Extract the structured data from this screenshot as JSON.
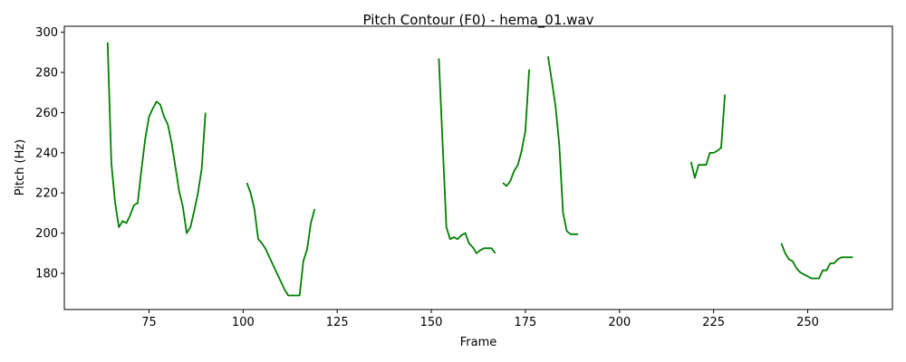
{
  "chart_data": {
    "type": "line",
    "title": "Pitch Contour (F0) - hema_01.wav",
    "xlabel": "Frame",
    "ylabel": "Pitch (Hz)",
    "xlim": [
      52.5,
      272.5
    ],
    "ylim": [
      162,
      303
    ],
    "xticks": [
      75,
      100,
      125,
      150,
      175,
      200,
      225,
      250
    ],
    "yticks": [
      180,
      200,
      220,
      240,
      260,
      280,
      300
    ],
    "grid": false,
    "legend": "none",
    "series": [
      {
        "color": "#008000",
        "segments": [
          [
            [
              64,
              295
            ],
            [
              65,
              235
            ],
            [
              66,
              215
            ],
            [
              67,
              203
            ],
            [
              68,
              206
            ],
            [
              69,
              205
            ],
            [
              70,
              209
            ],
            [
              71,
              214
            ],
            [
              72,
              215
            ],
            [
              73,
              232
            ],
            [
              74,
              247
            ],
            [
              75,
              258
            ],
            [
              76,
              262
            ],
            [
              77,
              265.5
            ],
            [
              78,
              264
            ],
            [
              79,
              258
            ],
            [
              80,
              254
            ],
            [
              81,
              245
            ],
            [
              82,
              233
            ],
            [
              83,
              221
            ],
            [
              84,
              213
            ],
            [
              85,
              200
            ],
            [
              86,
              203
            ],
            [
              87,
              211
            ],
            [
              88,
              220
            ],
            [
              89,
              232
            ],
            [
              90,
              260
            ]
          ],
          [
            [
              101,
              225
            ],
            [
              102,
              220
            ],
            [
              103,
              212
            ],
            [
              104,
              197
            ],
            [
              105,
              195
            ],
            [
              106,
              192
            ],
            [
              107,
              188
            ],
            [
              108,
              184
            ],
            [
              109,
              180
            ],
            [
              110,
              176
            ],
            [
              111,
              172
            ],
            [
              112,
              169
            ],
            [
              113,
              169
            ],
            [
              114,
              169
            ],
            [
              115,
              169
            ],
            [
              116,
              186
            ],
            [
              117,
              192
            ],
            [
              118,
              205
            ],
            [
              119,
              212
            ]
          ],
          [
            [
              152,
              287
            ],
            [
              153,
              245
            ],
            [
              154,
              203
            ],
            [
              155,
              197
            ],
            [
              156,
              198
            ],
            [
              157,
              197
            ],
            [
              158,
              199
            ],
            [
              159,
              200
            ],
            [
              160,
              195
            ],
            [
              161,
              193
            ],
            [
              162,
              190
            ],
            [
              163,
              191.5
            ],
            [
              164,
              192.5
            ],
            [
              165,
              192.5
            ],
            [
              166,
              192.5
            ],
            [
              167,
              190
            ]
          ],
          [
            [
              169,
              225
            ],
            [
              170,
              223.5
            ],
            [
              171,
              226
            ],
            [
              172,
              231
            ],
            [
              173,
              234
            ],
            [
              174,
              241
            ],
            [
              175,
              251
            ],
            [
              176,
              281.5
            ]
          ],
          [
            [
              181,
              288
            ],
            [
              182,
              276
            ],
            [
              183,
              263
            ],
            [
              184,
              244
            ],
            [
              185,
              210
            ],
            [
              186,
              201
            ],
            [
              187,
              199.5
            ],
            [
              188,
              199.5
            ],
            [
              189,
              199.5
            ]
          ],
          [
            [
              219,
              235.5
            ],
            [
              220,
              227.5
            ],
            [
              221,
              234
            ],
            [
              222,
              234
            ],
            [
              223,
              234
            ],
            [
              224,
              240
            ],
            [
              225,
              240
            ],
            [
              226,
              241
            ],
            [
              227,
              242.5
            ],
            [
              228,
              269
            ]
          ],
          [
            [
              243,
              195
            ],
            [
              244,
              190
            ],
            [
              245,
              187
            ],
            [
              246,
              186
            ],
            [
              247,
              182.5
            ],
            [
              248,
              180.5
            ],
            [
              249,
              179.5
            ],
            [
              250,
              178.5
            ],
            [
              251,
              177.5
            ],
            [
              252,
              177.5
            ],
            [
              253,
              177.5
            ],
            [
              254,
              181.5
            ],
            [
              255,
              181.5
            ],
            [
              256,
              185
            ],
            [
              257,
              185
            ],
            [
              258,
              187
            ],
            [
              259,
              188
            ],
            [
              260,
              188
            ],
            [
              261,
              188
            ],
            [
              262,
              188
            ]
          ]
        ]
      }
    ]
  }
}
